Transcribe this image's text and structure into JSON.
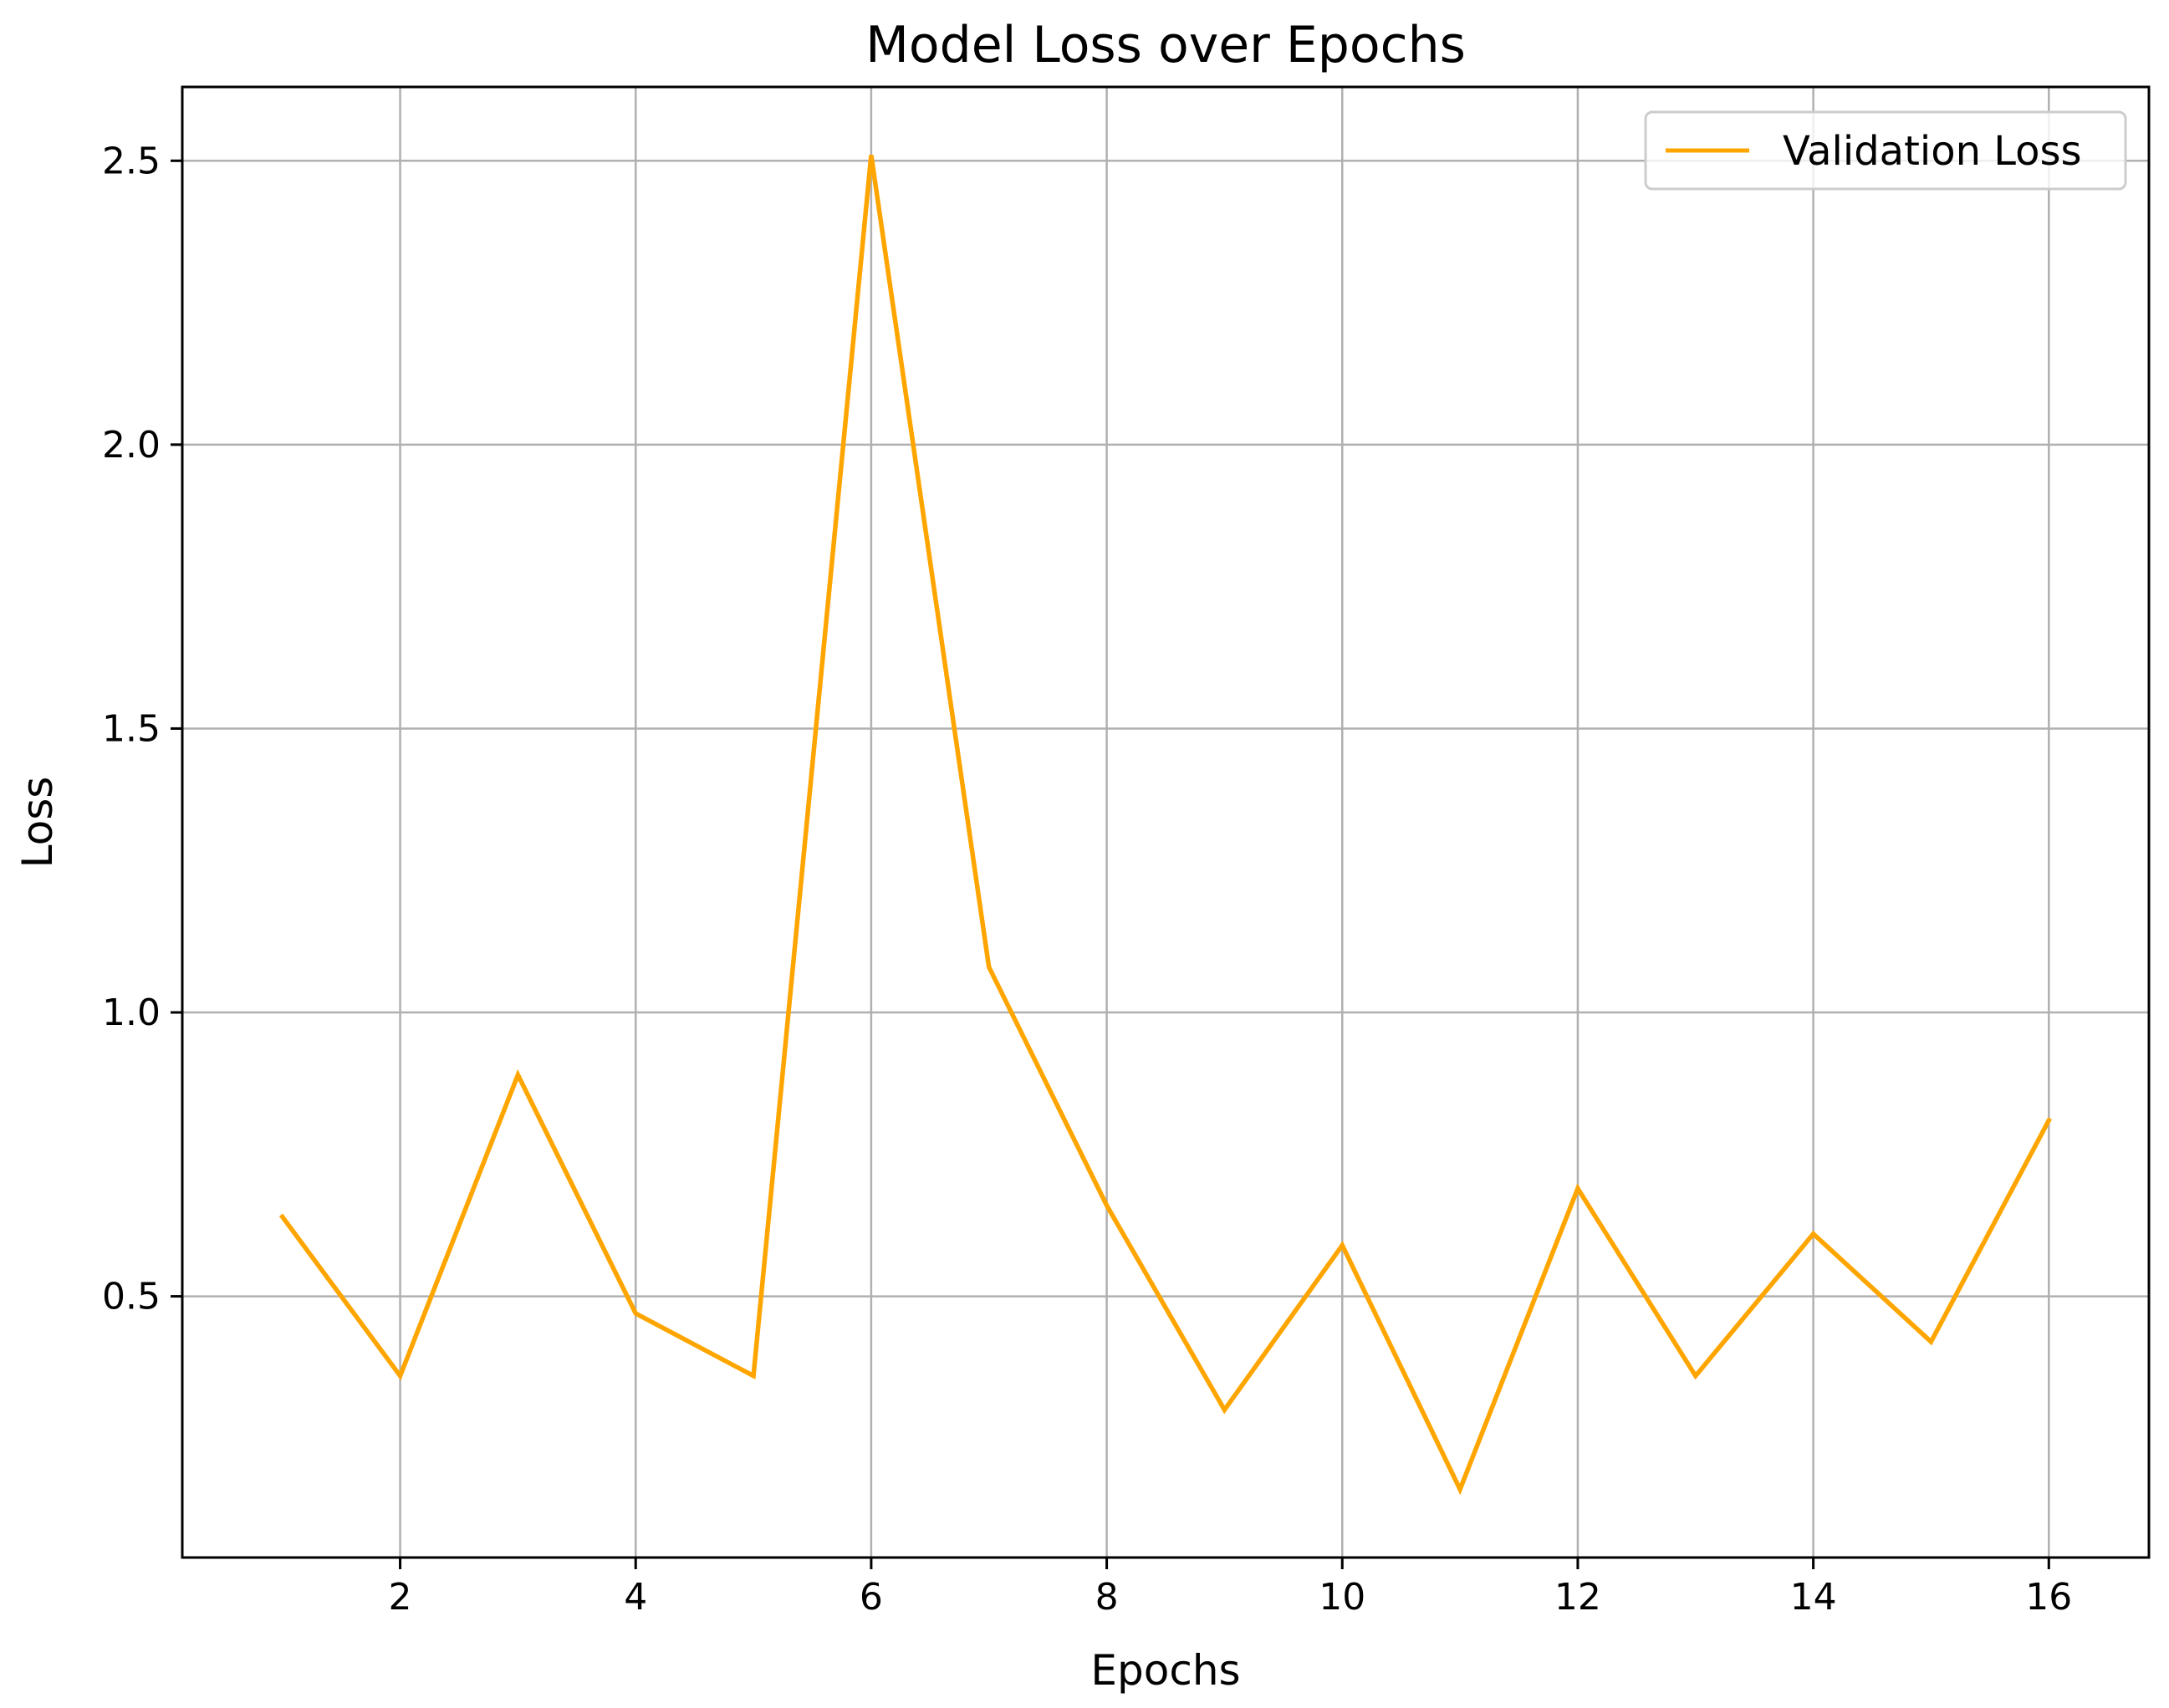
{
  "chart_data": {
    "type": "line",
    "title": "Model Loss over Epochs",
    "xlabel": "Epochs",
    "ylabel": "Loss",
    "xlim": [
      0.15,
      16.85
    ],
    "ylim": [
      0.04,
      2.63
    ],
    "xticks": [
      2,
      4,
      6,
      8,
      10,
      12,
      14,
      16
    ],
    "yticks": [
      0.5,
      1.0,
      1.5,
      2.0,
      2.5
    ],
    "xtick_labels": [
      "2",
      "4",
      "6",
      "8",
      "10",
      "12",
      "14",
      "16"
    ],
    "ytick_labels": [
      "0.5",
      "1.0",
      "1.5",
      "2.0",
      "2.5"
    ],
    "grid": true,
    "legend_position": "top-right",
    "series": [
      {
        "name": "Validation Loss",
        "color": "#ffa500",
        "x": [
          1,
          2,
          3,
          4,
          5,
          6,
          7,
          8,
          9,
          10,
          11,
          12,
          13,
          14,
          15,
          16
        ],
        "y": [
          0.64,
          0.36,
          0.89,
          0.47,
          0.36,
          2.51,
          1.08,
          0.66,
          0.3,
          0.59,
          0.16,
          0.69,
          0.36,
          0.61,
          0.42,
          0.81
        ]
      }
    ]
  }
}
